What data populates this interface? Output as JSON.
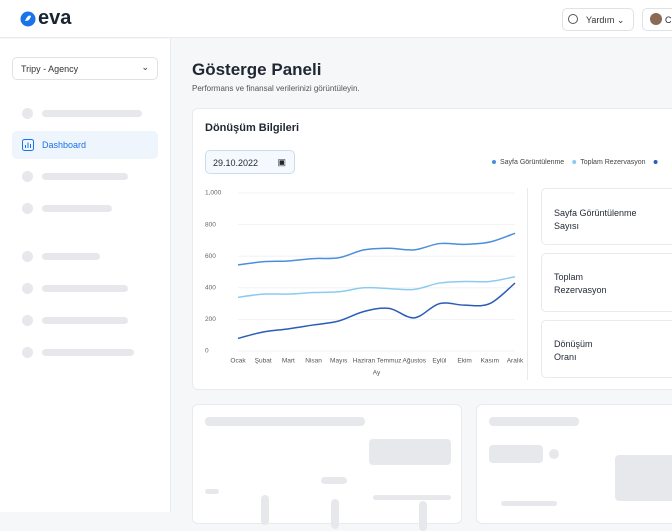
{
  "header": {
    "logo": "eva",
    "help": "Yardım",
    "user": "C"
  },
  "sidebar": {
    "account": "Tripy - Agency",
    "active_item": "Dashboard"
  },
  "page": {
    "title": "Gösterge Paneli",
    "subtitle": "Performans ve finansal verilerinizi görüntüleyin."
  },
  "card": {
    "title": "Dönüşüm Bilgileri",
    "date": "29.10.2022",
    "stats": [
      "Sayfa Görüntülenme Sayısı",
      "Toplam Rezervasyon",
      "Dönüşüm Oranı"
    ]
  },
  "chart_data": {
    "type": "line",
    "xlabel": "Ay",
    "categories": [
      "Ocak",
      "Şubat",
      "Mart",
      "Nisan",
      "Mayıs",
      "Haziran",
      "Temmuz",
      "Ağustos",
      "Eylül",
      "Ekim",
      "Kasım",
      "Aralık"
    ],
    "series": [
      {
        "name": "Sayfa Görüntülenme",
        "color": "#4a8fdc",
        "values": [
          545,
          565,
          570,
          585,
          590,
          640,
          650,
          640,
          680,
          675,
          690,
          745
        ]
      },
      {
        "name": "Toplam Rezervasyon",
        "color": "#8ccbf0",
        "values": [
          340,
          360,
          360,
          370,
          375,
          400,
          395,
          390,
          430,
          440,
          440,
          470
        ]
      },
      {
        "color": "#2a5cb8",
        "values": [
          80,
          120,
          140,
          165,
          190,
          250,
          270,
          210,
          300,
          290,
          300,
          430
        ]
      }
    ],
    "ylim": [
      0,
      1000
    ],
    "yticks": [
      0,
      200,
      400,
      600,
      800,
      {
        "value": 1000,
        "label": "1,000"
      }
    ],
    "grid": true
  }
}
